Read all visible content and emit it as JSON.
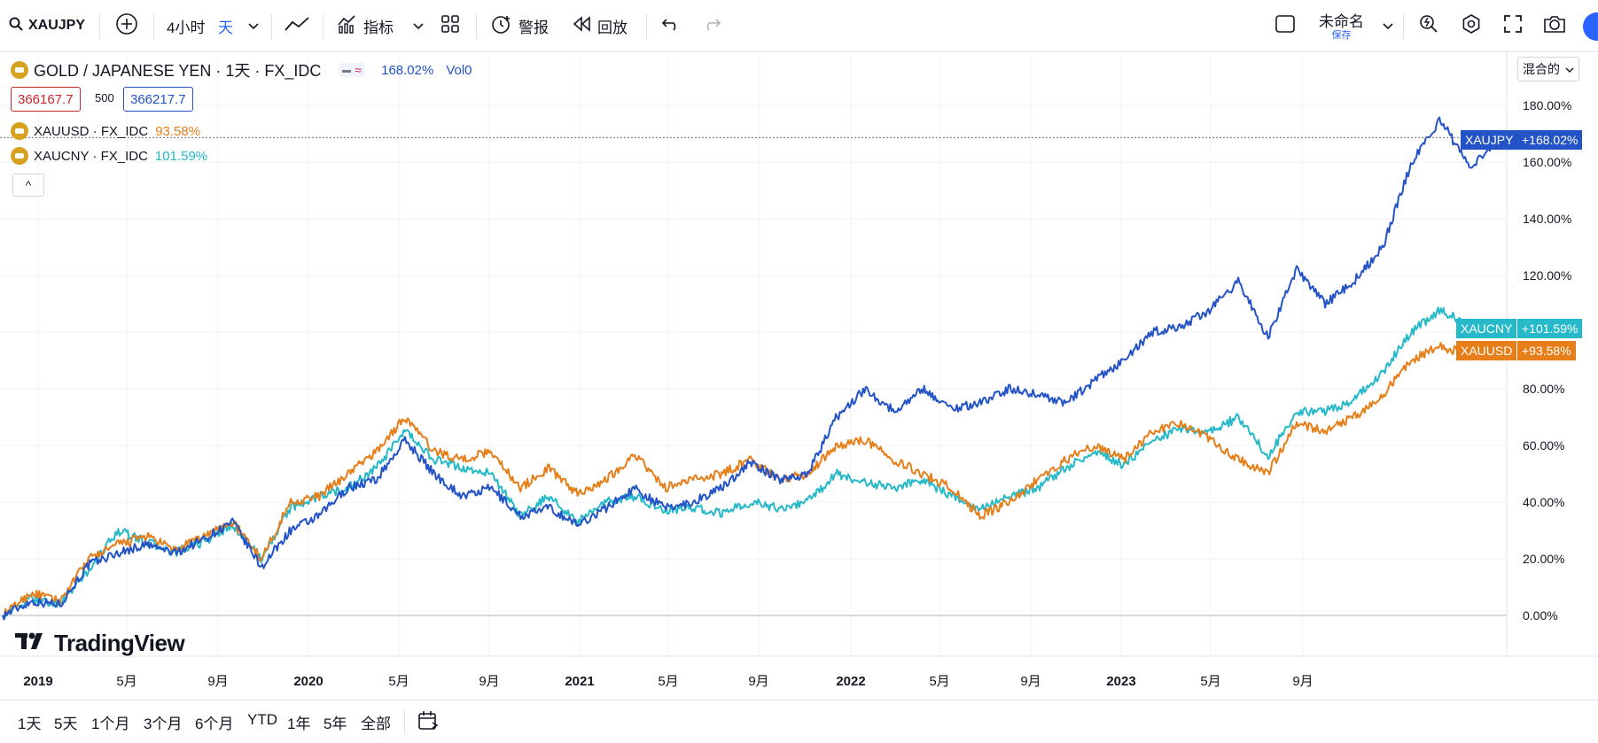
{
  "toolbar": {
    "symbol": "XAUJPY",
    "interval": "4小时",
    "interval_unit": "天",
    "indicators_label": "指标",
    "alert_label": "警报",
    "replay_label": "回放",
    "layout_name": "未命名",
    "layout_sub": "保存"
  },
  "legend": {
    "main_title": "GOLD / JAPANESE YEN · 1天 · FX_IDC",
    "main_change": "168.02%",
    "vol": "Vol0",
    "bid": "366167.7",
    "spread": "500",
    "ask": "366217.7",
    "compare": [
      {
        "label": "XAUUSD · FX_IDC",
        "value": "93.58%"
      },
      {
        "label": "XAUCNY · FX_IDC",
        "value": "101.59%"
      }
    ],
    "collapse_glyph": "^"
  },
  "scale_mode": "混合的",
  "logo_text": "TradingView",
  "bottom_ranges": [
    "1天",
    "5天",
    "1个月",
    "3个月",
    "6个月",
    "YTD",
    "1年",
    "5年",
    "全部"
  ],
  "colors": {
    "xaujpy": "#2453c7",
    "xauusd": "#e67e19",
    "xaucny": "#26b9c9",
    "grid": "#f0f3fa"
  },
  "chart_data": {
    "type": "line",
    "ylim": [
      0,
      185
    ],
    "y_unit": "%",
    "y_ticks": [
      "0.00%",
      "20.00%",
      "40.00%",
      "60.00%",
      "80.00%",
      "100.00%",
      "120.00%",
      "140.00%",
      "160.00%",
      "180.00%"
    ],
    "x_ticks": [
      "2019",
      "5月",
      "9月",
      "2020",
      "5月",
      "9月",
      "2021",
      "5月",
      "9月",
      "2022",
      "5月",
      "9月",
      "2023",
      "5月",
      "9月"
    ],
    "x": [
      "2019-01",
      "2019-03",
      "2019-05",
      "2019-06",
      "2019-08",
      "2019-09",
      "2019-11",
      "2020-01",
      "2020-02",
      "2020-03",
      "2020-03",
      "2020-04",
      "2020-05",
      "2020-06",
      "2020-07",
      "2020-08",
      "2020-09",
      "2020-10",
      "2020-12",
      "2021-01",
      "2021-03",
      "2021-04",
      "2021-05",
      "2021-06",
      "2021-08",
      "2021-09",
      "2021-11",
      "2021-12",
      "2022-01",
      "2022-03",
      "2022-04",
      "2022-05",
      "2022-06",
      "2022-08",
      "2022-09",
      "2022-10",
      "2022-11",
      "2022-12",
      "2023-01",
      "2023-02",
      "2023-03",
      "2023-05",
      "2023-07",
      "2023-09",
      "2023-10",
      "2023-11",
      "2023-12",
      "2024-02",
      "2024-03",
      "2024-04",
      "2024-04",
      "2024-05",
      "2024-05"
    ],
    "series": [
      {
        "name": "XAUJPY",
        "final_label": "+168.02%",
        "values": [
          0,
          5,
          4,
          18,
          22,
          25,
          22,
          27,
          33,
          17,
          30,
          35,
          45,
          48,
          62,
          50,
          42,
          45,
          35,
          38,
          32,
          38,
          45,
          38,
          40,
          45,
          54,
          48,
          50,
          70,
          80,
          72,
          80,
          73,
          75,
          80,
          78,
          75,
          83,
          90,
          100,
          102,
          108,
          118,
          98,
          122,
          110,
          118,
          130,
          160,
          175,
          158,
          168
        ]
      },
      {
        "name": "XAUUSD",
        "final_label": "+93.58%",
        "values": [
          0,
          8,
          5,
          20,
          25,
          28,
          23,
          28,
          33,
          20,
          40,
          42,
          50,
          58,
          70,
          58,
          55,
          58,
          45,
          52,
          43,
          48,
          57,
          45,
          48,
          50,
          55,
          48,
          50,
          60,
          62,
          55,
          50,
          45,
          35,
          40,
          48,
          55,
          60,
          55,
          65,
          68,
          62,
          55,
          50,
          68,
          65,
          70,
          78,
          90,
          95,
          92,
          93.58
        ]
      },
      {
        "name": "XAUCNY",
        "final_label": "+101.59%",
        "values": [
          0,
          6,
          4,
          16,
          30,
          26,
          22,
          26,
          32,
          20,
          38,
          42,
          45,
          52,
          65,
          55,
          52,
          50,
          35,
          42,
          33,
          40,
          42,
          37,
          38,
          36,
          40,
          38,
          40,
          50,
          47,
          45,
          48,
          42,
          38,
          42,
          45,
          52,
          58,
          53,
          62,
          66,
          65,
          70,
          56,
          72,
          72,
          76,
          86,
          100,
          108,
          102,
          101.59
        ]
      }
    ]
  }
}
